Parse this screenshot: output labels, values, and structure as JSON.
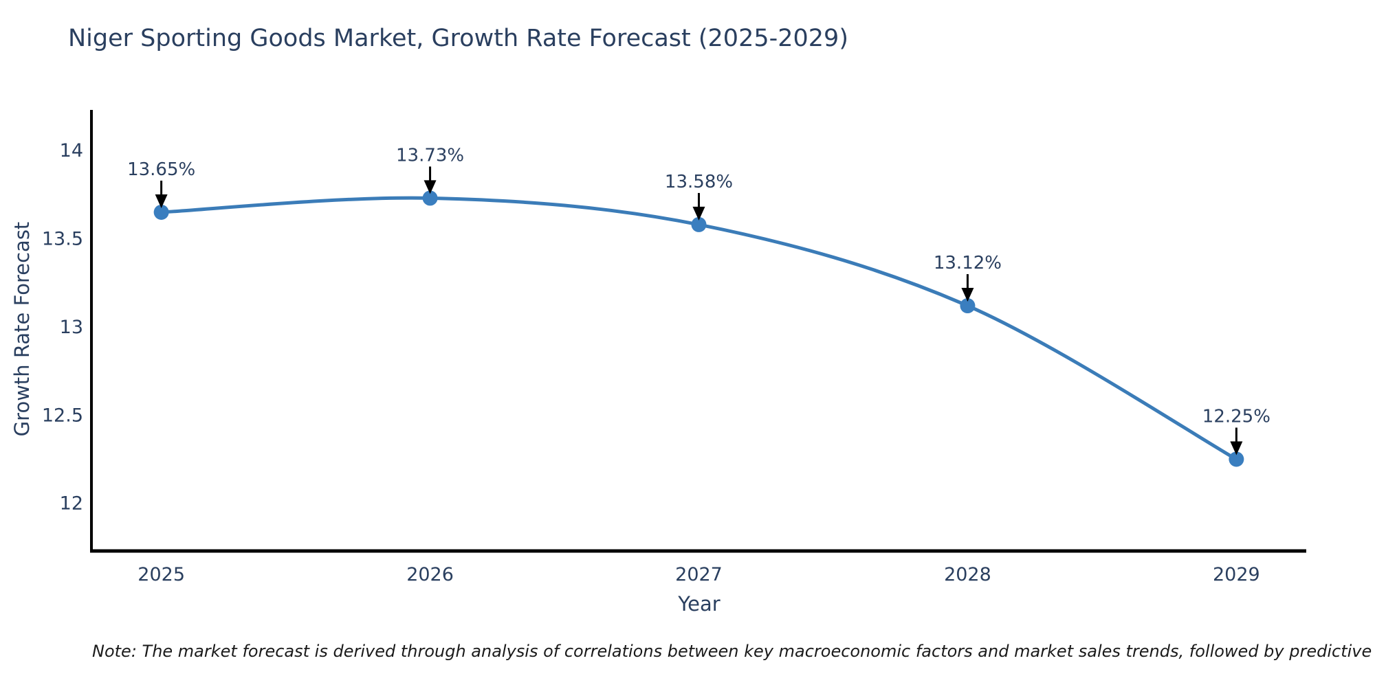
{
  "title": "Niger Sporting Goods Market, Growth Rate Forecast (2025-2029)",
  "note": "Note: The market forecast is derived through analysis of correlations between key macroeconomic factors and market sales trends, followed by predictive modeling to project future sal",
  "colors": {
    "line": "#3b7cb8",
    "marker": "#3a7ebf",
    "axis": "#000000",
    "text": "#2a3f5f",
    "arrow": "#000000",
    "note_text": "#1a1a1a"
  },
  "chart_data": {
    "type": "line",
    "title": "Niger Sporting Goods Market, Growth Rate Forecast (2025-2029)",
    "xlabel": "Year",
    "ylabel": "Growth Rate Forecast",
    "x": [
      2025,
      2026,
      2027,
      2028,
      2029
    ],
    "series": [
      {
        "name": "Growth Rate Forecast",
        "values": [
          13.65,
          13.73,
          13.58,
          13.12,
          12.25
        ]
      }
    ],
    "point_labels": [
      "13.65%",
      "13.73%",
      "13.58%",
      "13.12%",
      "12.25%"
    ],
    "xticks": [
      "2025",
      "2026",
      "2027",
      "2028",
      "2029"
    ],
    "yticks": [
      "12",
      "12.5",
      "13",
      "13.5",
      "14"
    ],
    "ytick_values": [
      12,
      12.5,
      13,
      13.5,
      14
    ],
    "xlim": [
      2024.74,
      2029.26
    ],
    "ylim": [
      11.73,
      14.23
    ],
    "grid": false,
    "legend_position": "none",
    "line_shape": "spline",
    "markers": true,
    "annotation_style": "value labels above points with black down arrows"
  }
}
